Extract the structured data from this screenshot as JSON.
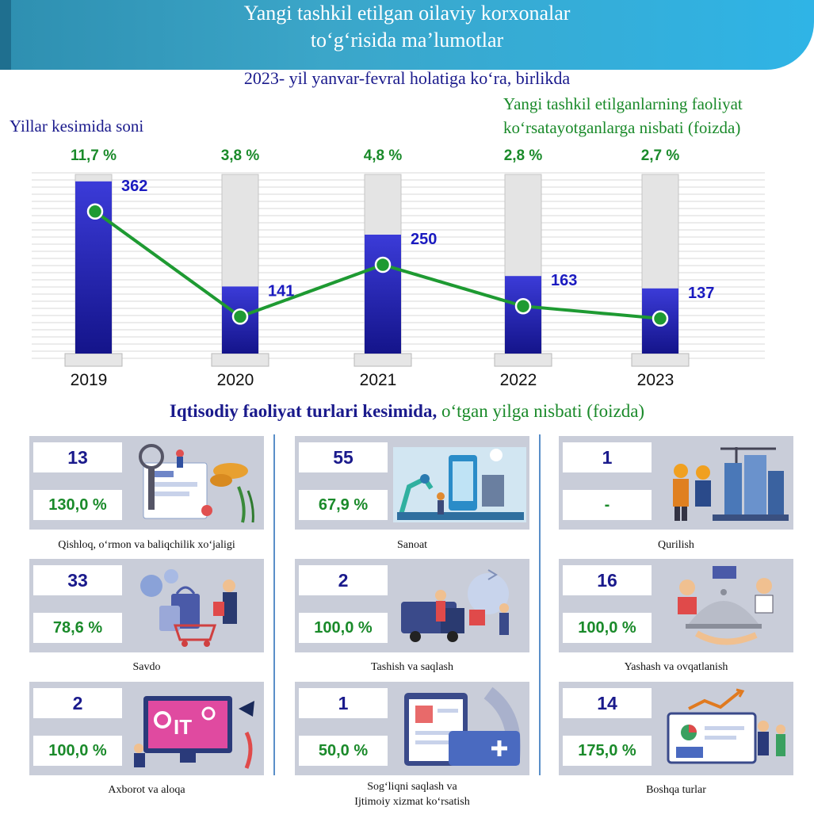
{
  "header": {
    "title_line1": "Yangi tashkil etilgan oilaviy korxonalar",
    "title_line2": "to‘g‘risida ma’lumotlar",
    "subtitle": "2023- yil yanvar-fevral holatiga ko‘ra, birlikda",
    "left_title": "Yillar kesimida soni",
    "right_title_line1": "Yangi tashkil etilganlarning faoliyat",
    "right_title_line2": "ko‘rsatayotganlarga nisbati (foizda)"
  },
  "chart_data": {
    "type": "bar",
    "categories": [
      "2019",
      "2020",
      "2021",
      "2022",
      "2023"
    ],
    "series": [
      {
        "values": [
          362,
          141,
          250,
          163,
          137
        ],
        "value_labels": [
          "362",
          "141",
          "250",
          "163",
          "137"
        ]
      },
      {
        "values": [
          11.7,
          3.8,
          4.8,
          2.8,
          2.7
        ],
        "value_labels": [
          "11,7 %",
          "3,8 %",
          "4,8 %",
          "2,8 %",
          "2,7 %"
        ]
      }
    ],
    "ylim": [
      0,
      410
    ],
    "line_series_display": "line with circle markers",
    "grid": true,
    "colors": {
      "bar": "#2020c8",
      "bar_bg": "#e4e4e4",
      "line": "#1e9a32",
      "count_label": "#1a1ac0",
      "pct_label": "#1a8a2a"
    }
  },
  "section": {
    "title_bold": "Iqtisodiy faoliyat turlari kesimida,",
    "title_rest": " o‘tgan yilga nisbati (foizda)"
  },
  "cards": [
    {
      "count": "13",
      "percent": "130,0 %",
      "label_line1": "Qishloq, o‘rmon va baliqchilik xo‘jaligi",
      "label_line2": "",
      "icon": "agriculture-icon"
    },
    {
      "count": "55",
      "percent": "67,9 %",
      "label_line1": "Sanoat",
      "label_line2": "",
      "icon": "factory-robot-icon"
    },
    {
      "count": "1",
      "percent": "-",
      "label_line1": "Qurilish",
      "label_line2": "",
      "icon": "construction-workers-icon"
    },
    {
      "count": "33",
      "percent": "78,6 %",
      "label_line1": "Savdo",
      "label_line2": "",
      "icon": "shopping-icon"
    },
    {
      "count": "2",
      "percent": "100,0 %",
      "label_line1": "Tashish va saqlash",
      "label_line2": "",
      "icon": "delivery-truck-icon"
    },
    {
      "count": "16",
      "percent": "100,0 %",
      "label_line1": "Yashash va ovqatlanish",
      "label_line2": "",
      "icon": "hotel-service-icon"
    },
    {
      "count": "2",
      "percent": "100,0 %",
      "label_line1": "Axborot va aloqa",
      "label_line2": "",
      "icon": "it-monitor-icon"
    },
    {
      "count": "1",
      "percent": "50,0 %",
      "label_line1": "Sog‘liqni saqlash va",
      "label_line2": "Ijtimoiy xizmat ko‘rsatish",
      "icon": "medical-clipboard-icon"
    },
    {
      "count": "14",
      "percent": "175,0 %",
      "label_line1": "Boshqa turlar",
      "label_line2": "",
      "icon": "business-chart-icon"
    }
  ]
}
